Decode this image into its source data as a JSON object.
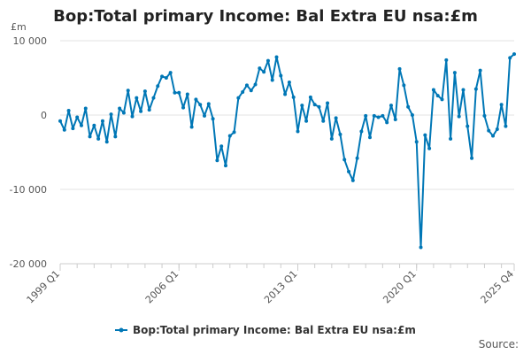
{
  "chart_data": {
    "type": "line",
    "title": "Bop:Total primary Income: Bal Extra EU nsa:£m",
    "ylabel": "£m",
    "xlabel": "",
    "ylim": [
      -20000,
      10000
    ],
    "yticks": [
      10000,
      0,
      -10000,
      -20000
    ],
    "ytick_labels": [
      "10 000",
      "0",
      "-10 000",
      "-20 000"
    ],
    "xticks": [
      "1999 Q1",
      "2006 Q1",
      "2013 Q1",
      "2020 Q1",
      "2025 Q4"
    ],
    "grid": true,
    "legend_position": "bottom",
    "series_color": "#0077b6",
    "series": [
      {
        "name": "Bop:Total primary Income: Bal Extra EU nsa:£m",
        "x_start": "1999 Q1",
        "values": [
          -800,
          -2000,
          600,
          -1800,
          -300,
          -1400,
          900,
          -2900,
          -1400,
          -3200,
          -800,
          -3600,
          100,
          -2900,
          900,
          300,
          3300,
          -200,
          2300,
          500,
          3200,
          700,
          2300,
          3900,
          5200,
          5000,
          5700,
          3000,
          3000,
          1000,
          2800,
          -1600,
          2100,
          1400,
          -100,
          1500,
          -500,
          -6100,
          -4200,
          -6800,
          -2800,
          -2300,
          2300,
          3100,
          4000,
          3300,
          4100,
          6300,
          5800,
          7300,
          4700,
          7800,
          5300,
          2800,
          4400,
          2400,
          -2200,
          1300,
          -800,
          2400,
          1400,
          1100,
          -800,
          1600,
          -3200,
          -400,
          -2600,
          -6000,
          -7600,
          -8800,
          -5800,
          -2200,
          -100,
          -3000,
          -100,
          -300,
          -100,
          -1000,
          1300,
          -600,
          6200,
          4000,
          1100,
          0,
          -3600,
          -17800,
          -2700,
          -4500,
          3400,
          2600,
          2100,
          7400,
          -3200,
          5700,
          -200,
          3400,
          -1500,
          -5800,
          3500,
          6000,
          -100,
          -2100,
          -2800,
          -1900,
          1400,
          -1500,
          7700,
          8200
        ]
      }
    ],
    "legend_label": "Bop:Total primary Income: Bal Extra EU nsa:£m",
    "source_label": "Source:"
  }
}
